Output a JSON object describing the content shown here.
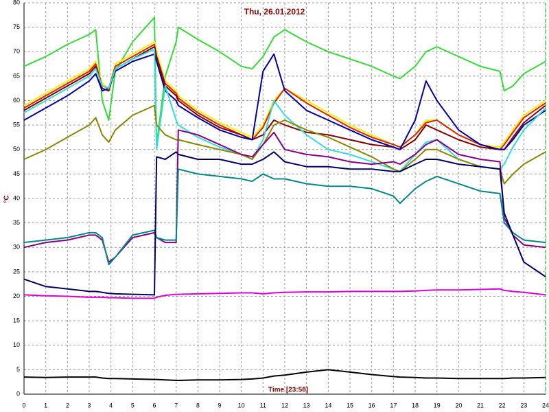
{
  "chart_data": {
    "type": "line",
    "title": "Thu, 26.01.2012",
    "x_label": "Time [23:58]",
    "y_label": "°C",
    "x": [
      0,
      1,
      2,
      3,
      3.3,
      3.6,
      3.9,
      4.2,
      5,
      6,
      6.1,
      6.5,
      7,
      7.1,
      8,
      9,
      10,
      10.5,
      11,
      11.5,
      12,
      13,
      14,
      15,
      16,
      17,
      17.3,
      18,
      18.5,
      19,
      20,
      21,
      21.9,
      22.1,
      22.5,
      23,
      24
    ],
    "series": [
      {
        "color": "#33dd33",
        "values": [
          67,
          69,
          71.5,
          73.5,
          74.5,
          60,
          56,
          66,
          72,
          77,
          51,
          65,
          72,
          75,
          72.5,
          70,
          67,
          66.5,
          69,
          73,
          74.5,
          72,
          70,
          68.5,
          67,
          65,
          64.5,
          67,
          70,
          71,
          69,
          67,
          66,
          62,
          63,
          65.5,
          68
        ]
      },
      {
        "color": "#ffee00",
        "values": [
          59,
          61.5,
          64,
          66.5,
          68,
          63.5,
          62.5,
          67.5,
          69.5,
          72,
          70,
          64,
          62,
          61,
          58,
          55.5,
          53.5,
          52.5,
          55,
          60,
          62.5,
          60,
          57.5,
          55,
          53,
          51,
          50.5,
          53,
          56,
          56,
          53,
          51,
          50.5,
          51.5,
          54,
          57,
          60
        ]
      },
      {
        "color": "#dd2200",
        "values": [
          58.5,
          61,
          63.5,
          66,
          67.5,
          63,
          62.5,
          67,
          69,
          71.5,
          69,
          63.5,
          61.5,
          60.5,
          57.5,
          55,
          53,
          52,
          54.5,
          59.5,
          62.5,
          59.5,
          57,
          54.5,
          52.5,
          51,
          50.5,
          53,
          55.5,
          56,
          53,
          51,
          50,
          51,
          53.5,
          56.5,
          59.5
        ]
      },
      {
        "color": "#880000",
        "values": [
          58,
          60.5,
          63,
          65.5,
          67,
          62.5,
          62,
          66.5,
          68.5,
          71,
          69,
          63,
          61,
          60,
          57,
          54.5,
          53,
          52,
          53,
          56,
          55,
          53.5,
          53,
          52,
          51,
          50.5,
          50,
          52,
          55,
          54,
          52,
          50.5,
          50,
          50,
          52.5,
          55.5,
          59
        ]
      },
      {
        "color": "#0000aa",
        "values": [
          56,
          58.5,
          61,
          64,
          65.5,
          62,
          62.5,
          66,
          68,
          69.5,
          68,
          62,
          60,
          59,
          56.5,
          54,
          52.5,
          52,
          66,
          69.5,
          62,
          58,
          56,
          54,
          52,
          50.5,
          50,
          56,
          64,
          60,
          54,
          51,
          50,
          50,
          52,
          55,
          58
        ]
      },
      {
        "color": "#33dddd",
        "values": [
          57.5,
          60,
          62.5,
          65,
          66.5,
          63,
          62.5,
          66.5,
          68.5,
          70.5,
          50,
          63,
          56,
          55,
          52.5,
          50.5,
          49,
          48,
          52,
          60,
          57,
          53,
          50,
          49,
          47.5,
          46,
          45.5,
          49,
          51.5,
          52,
          48,
          46.5,
          46,
          47,
          50.5,
          54,
          58.5
        ]
      },
      {
        "color": "#888800",
        "values": [
          48,
          50,
          52.5,
          55,
          56.5,
          53,
          51.5,
          54,
          57,
          59,
          55,
          53,
          52,
          52,
          51,
          50,
          49,
          48,
          51,
          55,
          56,
          54,
          52.5,
          50.5,
          48.5,
          46,
          45.5,
          48,
          50,
          50,
          48,
          46.5,
          46,
          43,
          45,
          47,
          49.5
        ]
      },
      {
        "color": "#880088",
        "values": [
          30,
          31,
          31.5,
          32.5,
          32.5,
          31.5,
          27,
          28,
          32,
          33,
          32,
          31,
          31,
          54,
          53,
          51,
          49,
          48.5,
          51,
          53.5,
          50,
          49,
          48.5,
          47.5,
          47,
          47.5,
          47,
          49,
          51,
          52,
          49,
          48,
          47.5,
          36,
          32.5,
          30.5,
          30
        ]
      },
      {
        "color": "#008888",
        "values": [
          31,
          31.5,
          32,
          33,
          33,
          32,
          26.5,
          28,
          32.5,
          33.5,
          32,
          31.5,
          31.5,
          46,
          45,
          44.5,
          44,
          43.5,
          45,
          44,
          44,
          43,
          42.5,
          42.5,
          42,
          40.5,
          39,
          42,
          43.5,
          44.5,
          43,
          41.5,
          41,
          35,
          33,
          31.5,
          31
        ]
      },
      {
        "color": "#000066",
        "values": [
          23.5,
          22,
          21.5,
          21,
          21,
          20.8,
          20.6,
          20.5,
          20.4,
          20.3,
          48.5,
          48,
          49.5,
          49,
          48,
          48,
          47,
          47,
          48,
          49.5,
          47.5,
          46.5,
          46.5,
          46,
          46,
          45.5,
          45.5,
          47,
          48,
          48,
          47,
          46.5,
          46,
          37,
          32.5,
          27,
          24
        ]
      },
      {
        "color": "#dd00dd",
        "values": [
          20.3,
          20.1,
          20,
          19.8,
          19.8,
          19.8,
          19.7,
          19.7,
          19.6,
          19.6,
          19.8,
          20.2,
          20.4,
          20.4,
          20.5,
          20.6,
          20.7,
          20.7,
          20.5,
          20.7,
          20.8,
          20.9,
          20.9,
          21,
          21,
          21,
          21,
          21.1,
          21.2,
          21.3,
          21.3,
          21.4,
          21.5,
          21.2,
          21,
          20.8,
          20.3
        ]
      },
      {
        "color": "#000000",
        "values": [
          3.5,
          3.4,
          3.5,
          3.5,
          3.5,
          3.3,
          3.2,
          3.2,
          3.1,
          3,
          3,
          2.9,
          2.8,
          2.8,
          2.9,
          2.9,
          3,
          3.1,
          3.3,
          3.7,
          3.9,
          4.5,
          5,
          4.5,
          4,
          3.6,
          3.5,
          3.4,
          3.3,
          3.3,
          3.2,
          3.2,
          3.2,
          3.2,
          3.3,
          3.3,
          3.4
        ]
      }
    ],
    "xlim": [
      0,
      24
    ],
    "ylim": [
      0,
      80
    ],
    "xticks": [
      0,
      1,
      2,
      3,
      4,
      5,
      6,
      7,
      8,
      9,
      10,
      11,
      12,
      13,
      14,
      15,
      16,
      17,
      18,
      19,
      20,
      21,
      22,
      23,
      24
    ],
    "yticks": [
      0,
      5,
      10,
      15,
      20,
      25,
      30,
      35,
      40,
      45,
      50,
      55,
      60,
      65,
      70,
      75,
      80
    ],
    "grid": true
  }
}
